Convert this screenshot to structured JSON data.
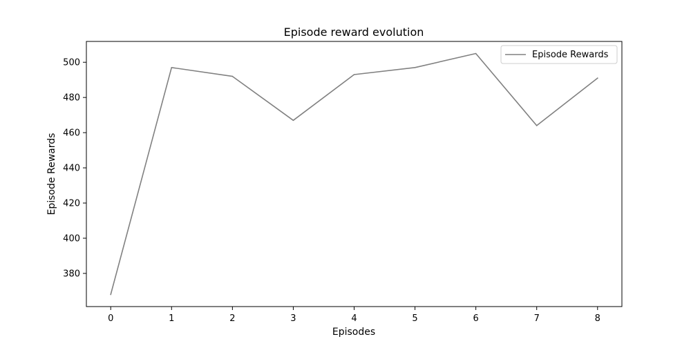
{
  "chart_data": {
    "type": "line",
    "title": "Episode reward evolution",
    "xlabel": "Episodes",
    "ylabel": "Episode Rewards",
    "x": [
      0,
      1,
      2,
      3,
      4,
      5,
      6,
      7,
      8
    ],
    "series": [
      {
        "name": "Episode Rewards",
        "values": [
          368,
          497,
          492,
          467,
          493,
          497,
          505,
          464,
          491
        ],
        "color": "#808080"
      }
    ],
    "xticks": [
      0,
      1,
      2,
      3,
      4,
      5,
      6,
      7,
      8
    ],
    "yticks": [
      380,
      400,
      420,
      440,
      460,
      480,
      500
    ],
    "xlim": [
      -0.4,
      8.4
    ],
    "ylim": [
      361.15,
      511.85
    ],
    "grid": false,
    "legend_position": "top-right"
  }
}
